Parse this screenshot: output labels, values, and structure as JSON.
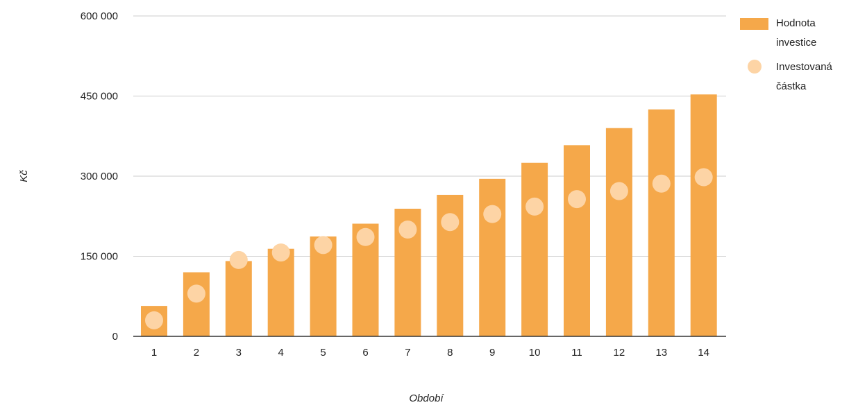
{
  "chart_data": {
    "type": "bar",
    "xlabel": "Období",
    "ylabel": "Kč",
    "ylim": [
      0,
      600000
    ],
    "yticks": [
      0,
      150000,
      300000,
      450000,
      600000
    ],
    "ytick_labels": [
      "0",
      "150 000",
      "300 000",
      "450 000",
      "600 000"
    ],
    "categories": [
      "1",
      "2",
      "3",
      "4",
      "5",
      "6",
      "7",
      "8",
      "9",
      "10",
      "11",
      "12",
      "13",
      "14"
    ],
    "grid": true,
    "legend_position": "top-right",
    "series": [
      {
        "name": "Hodnota investice",
        "type": "bar",
        "color": "#f5a84a",
        "values": [
          57000,
          120000,
          141000,
          164000,
          187000,
          211000,
          239000,
          265000,
          295000,
          325000,
          358000,
          390000,
          425000,
          453000
        ]
      },
      {
        "name": "Investovaná částka",
        "type": "scatter",
        "color": "#fdd4a5",
        "values": [
          30000,
          80000,
          143000,
          157000,
          171000,
          186000,
          200000,
          214000,
          229000,
          243000,
          257000,
          272000,
          286000,
          298000
        ]
      }
    ],
    "legend": {
      "entries": [
        {
          "lines": [
            "Hodnota",
            "investice"
          ]
        },
        {
          "lines": [
            "Investovaná",
            "částka"
          ]
        }
      ]
    }
  }
}
